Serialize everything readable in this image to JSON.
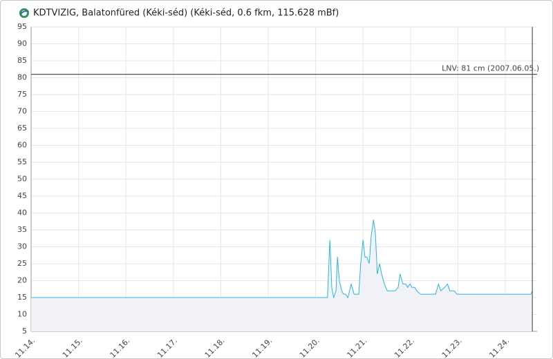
{
  "chart_data": {
    "type": "line",
    "title": "KDTVIZIG, Balatonfüred (Kéki-séd) (Kéki-séd, 0.6 fkm, 115.628 mBf)",
    "x": [
      14,
      20.25,
      20.3,
      20.34,
      20.38,
      20.43,
      20.46,
      20.5,
      20.55,
      20.59,
      20.63,
      20.68,
      20.75,
      20.81,
      20.91,
      20.95,
      21.0,
      21.04,
      21.08,
      21.13,
      21.17,
      21.22,
      21.26,
      21.3,
      21.35,
      21.39,
      21.45,
      21.51,
      21.68,
      21.74,
      21.78,
      21.84,
      21.9,
      21.94,
      21.99,
      22.03,
      22.09,
      22.13,
      22.21,
      22.53,
      22.59,
      22.64,
      22.72,
      22.78,
      22.83,
      22.92,
      22.98,
      24.54,
      24.57
    ],
    "series": [
      {
        "color": "#29b4df",
        "values": [
          15,
          15,
          32,
          18,
          15,
          17,
          27,
          20,
          17,
          16,
          16,
          15,
          19,
          16,
          16,
          25,
          32,
          27,
          27,
          25,
          33,
          38,
          34,
          22,
          25,
          22,
          19,
          17,
          17,
          18,
          22,
          19,
          19,
          18,
          19,
          18,
          18,
          17,
          16,
          16,
          19,
          17,
          18,
          19,
          17,
          17,
          16,
          16,
          17
        ]
      }
    ],
    "area_color": "#f1f2f8",
    "xlim": [
      14,
      24.67
    ],
    "xticks": [
      {
        "value": 14,
        "label": "11.14."
      },
      {
        "value": 15,
        "label": "11.15."
      },
      {
        "value": 16,
        "label": "11.16."
      },
      {
        "value": 17,
        "label": "11.17."
      },
      {
        "value": 18,
        "label": "11.18."
      },
      {
        "value": 19,
        "label": "11.19."
      },
      {
        "value": 20,
        "label": "11.20."
      },
      {
        "value": 21,
        "label": "11.21."
      },
      {
        "value": 22,
        "label": "11.22."
      },
      {
        "value": 23,
        "label": "11.23."
      },
      {
        "value": 24,
        "label": "11.24."
      }
    ],
    "ylim": [
      5,
      95
    ],
    "yticks": [
      5,
      10,
      15,
      20,
      25,
      30,
      35,
      40,
      45,
      50,
      55,
      60,
      65,
      70,
      75,
      80,
      85,
      90,
      95
    ],
    "grid": true,
    "reference_line": {
      "value": 81,
      "label": "LNV: 81 cm (2007.06.05.)"
    },
    "vline": 24.57
  }
}
